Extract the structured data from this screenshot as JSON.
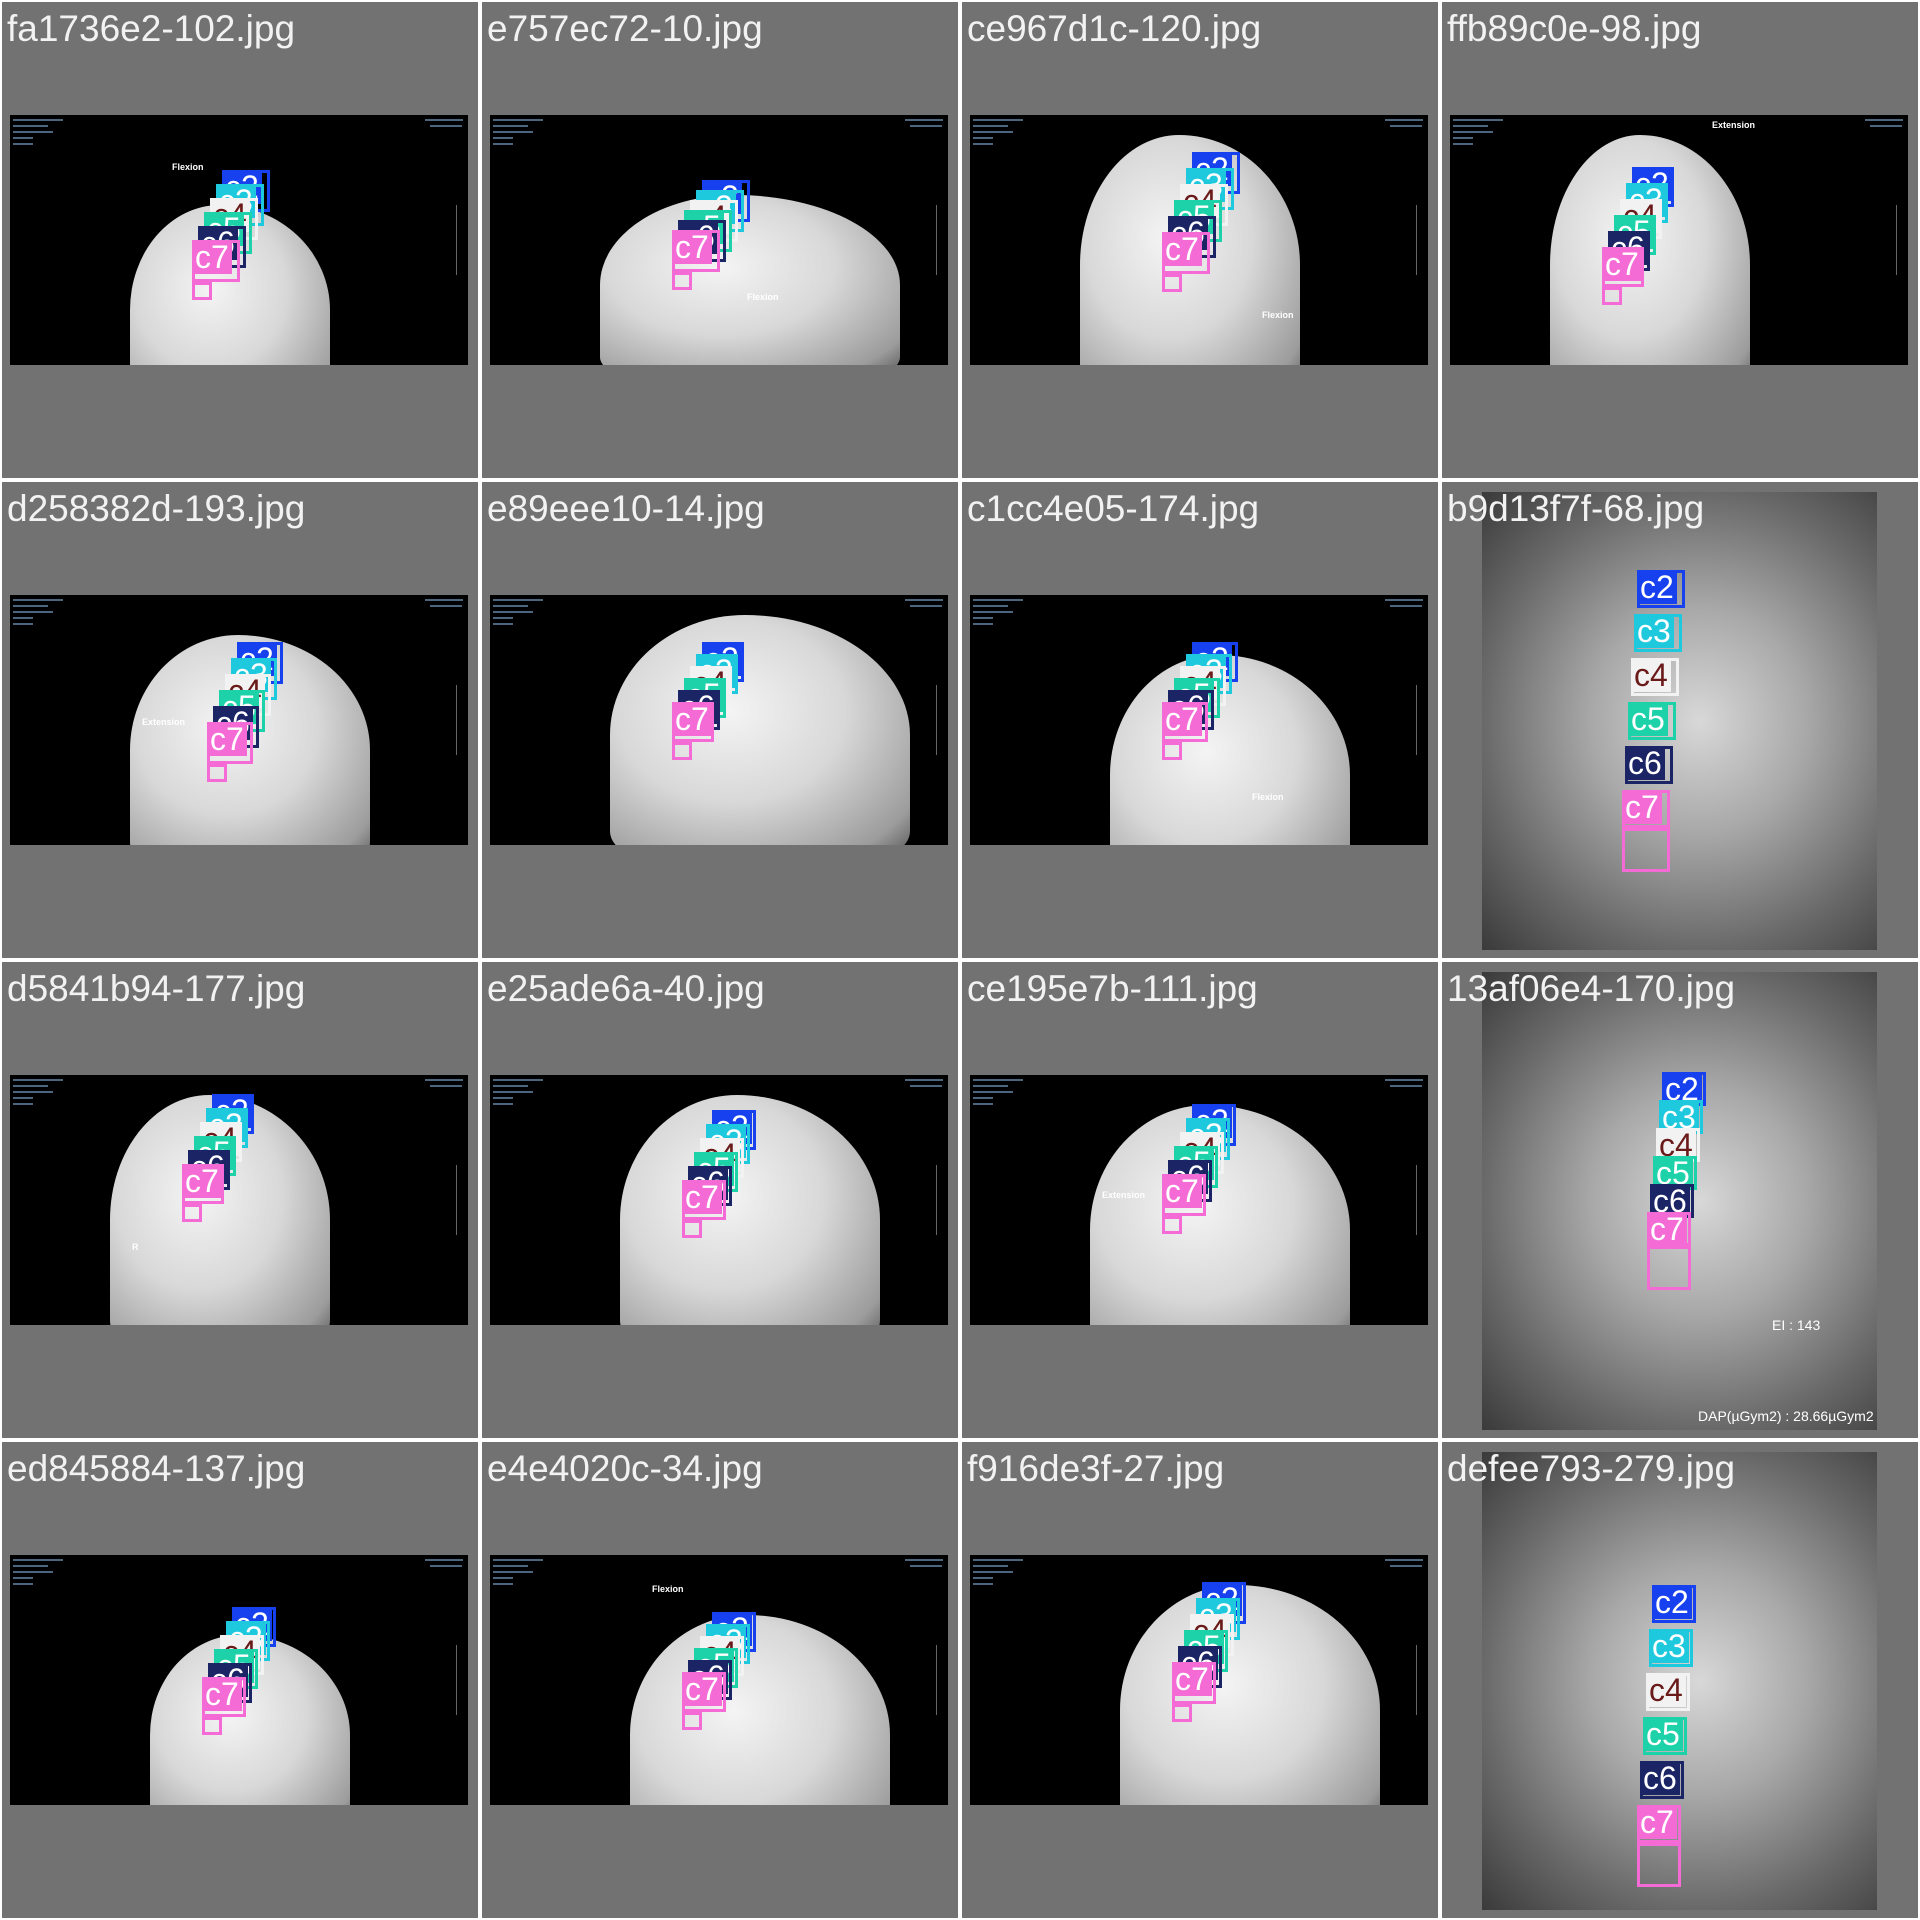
{
  "classes": {
    "c2": {
      "color": "#1740ef",
      "text_color": "#ffffff"
    },
    "c3": {
      "color": "#1ec8dd",
      "text_color": "#ffffff"
    },
    "c4": {
      "color": "#f2f2f2",
      "text_color": "#6b1a1a"
    },
    "c5": {
      "color": "#1dd1a8",
      "text_color": "#ffffff"
    },
    "c6": {
      "color": "#1b2566",
      "text_color": "#ffffff"
    },
    "c7": {
      "color": "#f46bd6",
      "text_color": "#ffffff"
    }
  },
  "tiles": [
    {
      "title": "fa1736e2-102.jpg",
      "view": "wide",
      "overlay_text": "Flexion",
      "labels": [
        "c2",
        "c3",
        "c4",
        "c5",
        "c6",
        "c7"
      ]
    },
    {
      "title": "e757ec72-10.jpg",
      "view": "wide",
      "overlay_text": "Flexion",
      "labels": [
        "c2",
        "c3",
        "c4",
        "c5",
        "c6",
        "c7"
      ]
    },
    {
      "title": "ce967d1c-120.jpg",
      "view": "wide",
      "overlay_text": "Flexion",
      "labels": [
        "c2",
        "c3",
        "c4",
        "c5",
        "c6",
        "c7"
      ]
    },
    {
      "title": "ffb89c0e-98.jpg",
      "view": "wide",
      "overlay_text": "Extension",
      "labels": [
        "c2",
        "c3",
        "c4",
        "c5",
        "c6",
        "c7"
      ]
    },
    {
      "title": "d258382d-193.jpg",
      "view": "wide",
      "overlay_text": "Extension",
      "labels": [
        "c2",
        "c3",
        "c4",
        "c5",
        "c6",
        "c7"
      ]
    },
    {
      "title": "e89eee10-14.jpg",
      "view": "wide",
      "overlay_text": "",
      "labels": [
        "c2",
        "c3",
        "c4",
        "c5",
        "c6",
        "c7"
      ]
    },
    {
      "title": "c1cc4e05-174.jpg",
      "view": "wide",
      "overlay_text": "Flexion",
      "labels": [
        "c2",
        "c3",
        "c4",
        "c5",
        "c6",
        "c7"
      ]
    },
    {
      "title": "b9d13f7f-68.jpg",
      "view": "tall",
      "overlay_text": "",
      "labels": [
        "c2",
        "c3",
        "c4",
        "c5",
        "c6",
        "c7"
      ]
    },
    {
      "title": "d5841b94-177.jpg",
      "view": "wide",
      "overlay_text": "R",
      "labels": [
        "c2",
        "c3",
        "c4",
        "c5",
        "c6",
        "c7"
      ]
    },
    {
      "title": "e25ade6a-40.jpg",
      "view": "wide",
      "overlay_text": "",
      "labels": [
        "c2",
        "c3",
        "c4",
        "c5",
        "c6",
        "c7"
      ]
    },
    {
      "title": "ce195e7b-111.jpg",
      "view": "wide",
      "overlay_text": "Extension",
      "labels": [
        "c2",
        "c3",
        "c4",
        "c5",
        "c6",
        "c7"
      ]
    },
    {
      "title": "13af06e4-170.jpg",
      "view": "tall",
      "overlay_text": "EI : 143",
      "overlay_text_2": "DAP(µGym2) : 28.66µGym2",
      "labels": [
        "c2",
        "c3",
        "c4",
        "c5",
        "c6",
        "c7"
      ]
    },
    {
      "title": "ed845884-137.jpg",
      "view": "wide",
      "overlay_text": "",
      "labels": [
        "c2",
        "c3",
        "c4",
        "c5",
        "c6",
        "c7"
      ]
    },
    {
      "title": "e4e4020c-34.jpg",
      "view": "wide",
      "overlay_text": "Flexion",
      "labels": [
        "c2",
        "c3",
        "c4",
        "c5",
        "c6",
        "c7"
      ]
    },
    {
      "title": "f916de3f-27.jpg",
      "view": "wide",
      "overlay_text": "",
      "labels": [
        "c2",
        "c3",
        "c4",
        "c5",
        "c6",
        "c7"
      ]
    },
    {
      "title": "defee793-279.jpg",
      "view": "tall",
      "overlay_text": "",
      "labels": [
        "c2",
        "c3",
        "c4",
        "c5",
        "c6",
        "c7"
      ]
    }
  ]
}
